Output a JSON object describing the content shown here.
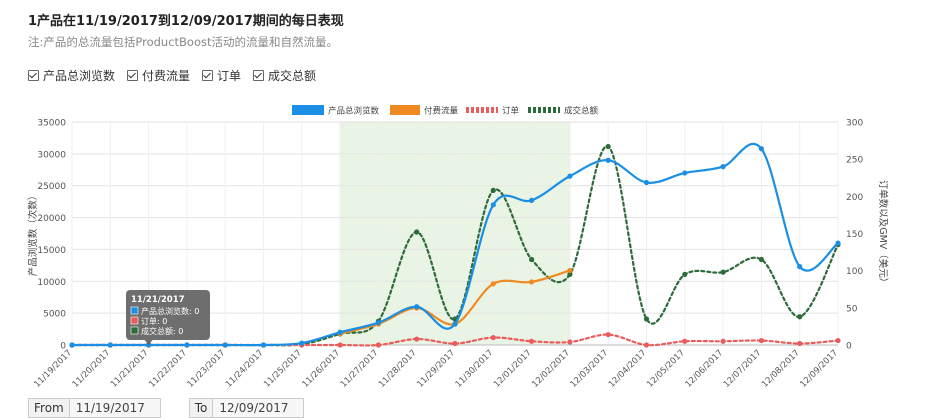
{
  "header": {
    "title": "1产品在11/19/2017到12/09/2017期间的每日表现",
    "subtitle": "注:产品的总流量包括ProductBoost活动的流量和自然流量。"
  },
  "toggles": [
    {
      "label": "产品总浏览数",
      "checked": true
    },
    {
      "label": "付费流量",
      "checked": true
    },
    {
      "label": "订单",
      "checked": true
    },
    {
      "label": "成交总额",
      "checked": true
    }
  ],
  "footer": {
    "from_label": "From",
    "from_value": "11/19/2017",
    "to_label": "To",
    "to_value": "12/09/2017"
  },
  "tooltip": {
    "date": "11/21/2017",
    "lines": [
      "产品总浏览数: 0",
      "订单: 0",
      "成交总额: 0"
    ]
  },
  "chart_data": {
    "type": "line",
    "categories": [
      "11/19/2017",
      "11/20/2017",
      "11/21/2017",
      "11/22/2017",
      "11/23/2017",
      "11/24/2017",
      "11/25/2017",
      "11/26/2017",
      "11/27/2017",
      "11/28/2017",
      "11/29/2017",
      "11/30/2017",
      "12/01/2017",
      "12/02/2017",
      "12/03/2017",
      "12/04/2017",
      "12/05/2017",
      "12/06/2017",
      "12/07/2017",
      "12/08/2017",
      "12/09/2017"
    ],
    "ylabel_left": "产品浏览数（次数）",
    "ylabel_right": "订单数以及GMV（美元）",
    "ylim_left": [
      0,
      35000
    ],
    "yticks_left": [
      0,
      5000,
      10000,
      15000,
      20000,
      25000,
      30000,
      35000
    ],
    "ylim_right": [
      0,
      300
    ],
    "yticks_right": [
      0,
      50,
      100,
      150,
      200,
      250,
      300
    ],
    "shaded_range": [
      "11/26/2017",
      "12/02/2017"
    ],
    "legend_position": "top-center",
    "series": [
      {
        "name": "产品总浏览数",
        "axis": "left",
        "color": "#1a8fe3",
        "style": "solid",
        "values": [
          0,
          0,
          0,
          0,
          0,
          0,
          300,
          2000,
          3500,
          6000,
          3300,
          22000,
          22700,
          26500,
          29000,
          25500,
          27000,
          28000,
          30800,
          12300,
          16000
        ]
      },
      {
        "name": "付费流量",
        "axis": "left",
        "color": "#ef8a22",
        "style": "solid",
        "values": [
          null,
          null,
          null,
          null,
          null,
          null,
          null,
          1800,
          3300,
          5800,
          3300,
          9600,
          9900,
          11700,
          null,
          null,
          null,
          null,
          null,
          null,
          null
        ]
      },
      {
        "name": "订单",
        "axis": "right",
        "color": "#e85c5c",
        "style": "dotted",
        "values": [
          0,
          0,
          0,
          0,
          0,
          0,
          0,
          0,
          0,
          8,
          2,
          10,
          5,
          4,
          14,
          0,
          5,
          5,
          6,
          2,
          6
        ]
      },
      {
        "name": "成交总额",
        "axis": "right",
        "color": "#2e6b3a",
        "style": "dotted",
        "values": [
          0,
          0,
          0,
          0,
          0,
          0,
          1,
          15,
          32,
          152,
          35,
          208,
          115,
          95,
          267,
          35,
          95,
          98,
          115,
          38,
          135
        ]
      }
    ]
  }
}
